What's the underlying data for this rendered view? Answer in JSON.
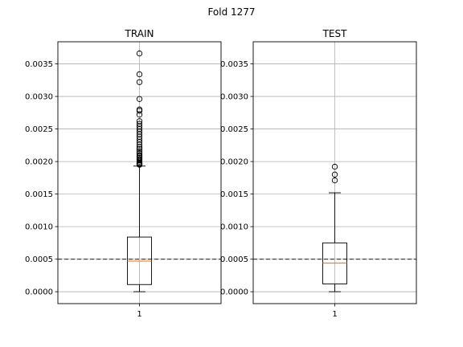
{
  "figure": {
    "suptitle": "Fold 1277"
  },
  "chart_data": [
    {
      "type": "box",
      "title": "TRAIN",
      "xlabel": "",
      "ylabel": "",
      "categories": [
        "1"
      ],
      "ylim": [
        -0.000183,
        0.00384
      ],
      "yticks": [
        0.0,
        0.0005,
        0.001,
        0.0015,
        0.002,
        0.0025,
        0.003,
        0.0035
      ],
      "ytick_labels": [
        "0.0000",
        "0.0005",
        "0.0010",
        "0.0015",
        "0.0020",
        "0.0025",
        "0.0030",
        "0.0035"
      ],
      "grid": true,
      "box": {
        "whisker_low": 0.0,
        "q1": 0.00011,
        "median": 0.00047,
        "q3": 0.00084,
        "whisker_high": 0.00193
      },
      "outliers": [
        0.00195,
        0.00196,
        0.00197,
        0.00198,
        0.002,
        0.00202,
        0.00204,
        0.00206,
        0.00208,
        0.0021,
        0.00213,
        0.00216,
        0.00219,
        0.00222,
        0.00226,
        0.0023,
        0.00234,
        0.00238,
        0.00242,
        0.00246,
        0.0025,
        0.00254,
        0.00258,
        0.00262,
        0.00272,
        0.00278,
        0.0028,
        0.00296,
        0.00322,
        0.00334,
        0.00366
      ],
      "reference_line": {
        "value": 0.0005,
        "style": "dashed"
      },
      "colors": {
        "median": "#ff7f0e",
        "box": "#000000",
        "reference": "#404040",
        "grid": "#b0b0b0"
      }
    },
    {
      "type": "box",
      "title": "TEST",
      "xlabel": "",
      "ylabel": "",
      "categories": [
        "1"
      ],
      "ylim": [
        -0.000183,
        0.00384
      ],
      "yticks": [
        0.0,
        0.0005,
        0.001,
        0.0015,
        0.002,
        0.0025,
        0.003,
        0.0035
      ],
      "ytick_labels": [
        "0.0000",
        "0.0005",
        "0.0010",
        "0.0015",
        "0.0020",
        "0.0025",
        "0.0030",
        "0.0035"
      ],
      "grid": true,
      "box": {
        "whisker_low": 0.0,
        "q1": 0.00012,
        "median": 0.00044,
        "q3": 0.00075,
        "whisker_high": 0.00152
      },
      "outliers": [
        0.00171,
        0.0018,
        0.00192
      ],
      "reference_line": {
        "value": 0.0005,
        "style": "dashed"
      },
      "colors": {
        "median": "#ff7f0e",
        "box": "#000000",
        "reference": "#404040",
        "grid": "#b0b0b0"
      }
    }
  ]
}
